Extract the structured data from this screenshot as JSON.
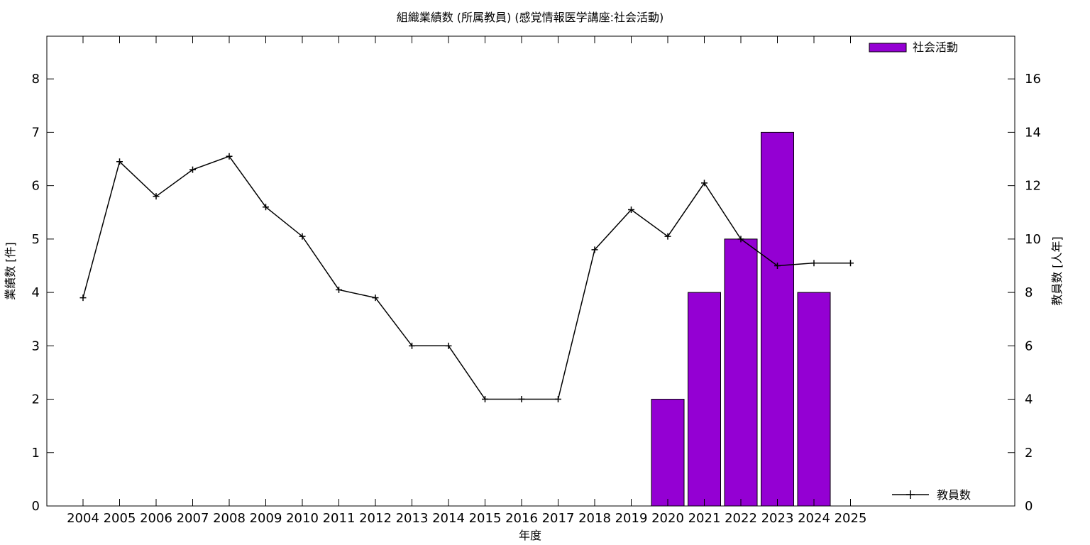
{
  "chart_data": {
    "type": "bar",
    "title": "組織業績数 (所属教員) (感覚情報医学講座:社会活動)",
    "xlabel": "年度",
    "ylabel": "業績数 [件]",
    "y2label": "教員数 [人年]",
    "categories": [
      "2004",
      "2005",
      "2006",
      "2007",
      "2008",
      "2009",
      "2010",
      "2011",
      "2012",
      "2013",
      "2014",
      "2015",
      "2016",
      "2017",
      "2018",
      "2019",
      "2020",
      "2021",
      "2022",
      "2023",
      "2024",
      "2025"
    ],
    "ylim": [
      0,
      8.8
    ],
    "y2lim": [
      0,
      17.6
    ],
    "yticks": [
      0,
      1,
      2,
      3,
      4,
      5,
      6,
      7,
      8
    ],
    "y2ticks": [
      0,
      2,
      4,
      6,
      8,
      10,
      12,
      14,
      16
    ],
    "grid": false,
    "series": [
      {
        "name": "社会活動",
        "type": "bar",
        "axis": "left",
        "color": "#9400d3",
        "values": [
          0,
          0,
          0,
          0,
          0,
          0,
          0,
          0,
          0,
          0,
          0,
          0,
          0,
          0,
          0,
          0,
          2,
          4,
          5,
          7,
          4,
          0
        ]
      },
      {
        "name": "教員数",
        "type": "line",
        "axis": "right",
        "color": "#000000",
        "marker": "plus",
        "values": [
          7.8,
          12.9,
          11.6,
          12.6,
          13.1,
          11.2,
          10.1,
          8.1,
          7.8,
          6.0,
          6.0,
          4.0,
          4.0,
          4.0,
          9.6,
          11.1,
          10.1,
          12.1,
          10.0,
          9.0,
          9.1,
          9.1
        ]
      }
    ],
    "legend": [
      {
        "label": "社会活動",
        "position": "top-right",
        "style": "bar"
      },
      {
        "label": "教員数",
        "position": "bottom-right",
        "style": "line"
      }
    ]
  }
}
